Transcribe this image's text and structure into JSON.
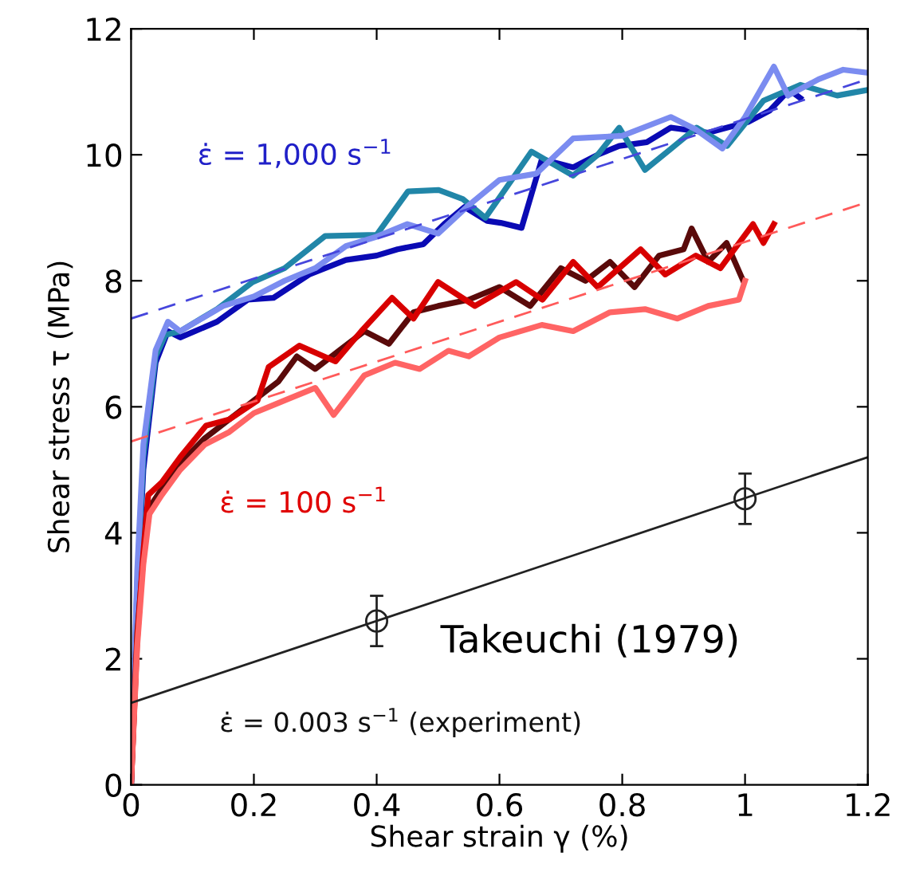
{
  "chart_data": {
    "type": "line",
    "xlabel": "Shear strain γ (%)",
    "ylabel": "Shear stress τ (MPa)",
    "xlim": [
      0,
      1.2
    ],
    "ylim": [
      0,
      12
    ],
    "xticks": [
      0,
      0.2,
      0.4,
      0.6,
      0.8,
      1,
      1.2
    ],
    "yticks": [
      0,
      2,
      4,
      6,
      8,
      10,
      12
    ],
    "grid": false,
    "legend": false,
    "line_style": "solid",
    "series": [
      {
        "color": "#0a0ab4",
        "x": [
          0,
          0.01,
          0.02,
          0.04,
          0.06,
          0.08,
          0.14,
          0.19,
          0.232,
          0.29,
          0.35,
          0.4,
          0.434,
          0.476,
          0.51,
          0.543,
          0.58,
          0.602,
          0.636,
          0.669,
          0.72,
          0.76,
          0.795,
          0.84,
          0.879,
          0.94,
          1.005,
          1.04,
          1.072,
          1.09
        ],
        "values": [
          0,
          3.0,
          5.0,
          6.7,
          7.2,
          7.1,
          7.35,
          7.7,
          7.73,
          8.1,
          8.33,
          8.4,
          8.5,
          8.58,
          8.9,
          9.17,
          8.95,
          8.92,
          8.84,
          9.93,
          9.8,
          10.0,
          10.14,
          10.2,
          10.43,
          10.35,
          10.52,
          10.7,
          11.03,
          10.9
        ]
      },
      {
        "color": "#2186a8",
        "x": [
          0,
          0.01,
          0.02,
          0.04,
          0.056,
          0.08,
          0.14,
          0.198,
          0.25,
          0.316,
          0.4,
          0.451,
          0.501,
          0.54,
          0.577,
          0.62,
          0.652,
          0.72,
          0.76,
          0.795,
          0.837,
          0.88,
          0.921,
          0.971,
          1.03,
          1.09,
          1.15,
          1.2
        ],
        "values": [
          0,
          3.2,
          5.2,
          6.8,
          7.14,
          7.2,
          7.55,
          7.98,
          8.2,
          8.71,
          8.73,
          9.42,
          9.44,
          9.3,
          9.0,
          9.6,
          10.05,
          9.67,
          10.0,
          10.43,
          9.76,
          10.1,
          10.43,
          10.14,
          10.86,
          11.11,
          10.94,
          11.03
        ]
      },
      {
        "color": "#7b8cf0",
        "x": [
          0,
          0.01,
          0.02,
          0.04,
          0.06,
          0.08,
          0.15,
          0.2,
          0.25,
          0.3,
          0.35,
          0.4,
          0.45,
          0.5,
          0.55,
          0.6,
          0.66,
          0.72,
          0.8,
          0.879,
          0.92,
          0.963,
          1.0,
          1.047,
          1.07,
          1.12,
          1.16,
          1.2
        ],
        "values": [
          0,
          3.4,
          5.4,
          6.9,
          7.35,
          7.2,
          7.6,
          7.75,
          8.0,
          8.2,
          8.55,
          8.7,
          8.9,
          8.75,
          9.2,
          9.6,
          9.7,
          10.26,
          10.3,
          10.6,
          10.4,
          10.1,
          10.6,
          11.4,
          10.94,
          11.2,
          11.35,
          11.3
        ]
      },
      {
        "color": "#5a0a0a",
        "x": [
          0,
          0.01,
          0.02,
          0.03,
          0.05,
          0.08,
          0.12,
          0.16,
          0.2,
          0.24,
          0.27,
          0.3,
          0.34,
          0.38,
          0.42,
          0.46,
          0.5,
          0.55,
          0.6,
          0.65,
          0.7,
          0.74,
          0.78,
          0.82,
          0.86,
          0.9,
          0.913,
          0.94,
          0.97,
          0.997
        ],
        "values": [
          0,
          2.4,
          3.6,
          4.4,
          4.7,
          5.1,
          5.5,
          5.8,
          6.1,
          6.4,
          6.8,
          6.6,
          6.9,
          7.2,
          7.0,
          7.5,
          7.6,
          7.7,
          7.9,
          7.6,
          8.2,
          8.0,
          8.3,
          7.9,
          8.4,
          8.5,
          8.83,
          8.3,
          8.6,
          8.0
        ]
      },
      {
        "color": "#d80000",
        "x": [
          0,
          0.01,
          0.02,
          0.028,
          0.05,
          0.08,
          0.122,
          0.16,
          0.206,
          0.224,
          0.274,
          0.333,
          0.375,
          0.425,
          0.46,
          0.5,
          0.56,
          0.627,
          0.67,
          0.72,
          0.76,
          0.83,
          0.87,
          0.92,
          0.96,
          1.013,
          1.03,
          1.047
        ],
        "values": [
          0,
          2.3,
          3.7,
          4.6,
          4.8,
          5.2,
          5.7,
          5.8,
          6.1,
          6.63,
          6.97,
          6.72,
          7.2,
          7.73,
          7.4,
          7.98,
          7.6,
          7.98,
          7.7,
          8.3,
          7.9,
          8.5,
          8.1,
          8.4,
          8.2,
          8.9,
          8.6,
          8.9
        ]
      },
      {
        "color": "#ff6464",
        "x": [
          0,
          0.01,
          0.02,
          0.03,
          0.05,
          0.08,
          0.12,
          0.16,
          0.2,
          0.25,
          0.3,
          0.33,
          0.38,
          0.43,
          0.47,
          0.517,
          0.55,
          0.6,
          0.669,
          0.72,
          0.78,
          0.837,
          0.89,
          0.94,
          0.99,
          1.0
        ],
        "values": [
          0,
          2.2,
          3.5,
          4.3,
          4.6,
          5.0,
          5.4,
          5.6,
          5.9,
          6.1,
          6.3,
          5.87,
          6.5,
          6.7,
          6.6,
          6.89,
          6.8,
          7.1,
          7.3,
          7.2,
          7.5,
          7.55,
          7.4,
          7.6,
          7.7,
          8.0
        ]
      },
      {
        "color": "#4646dc",
        "line_style": "dashed",
        "x": [
          0,
          1.2
        ],
        "values": [
          7.4,
          11.2
        ]
      },
      {
        "color": "#ff5a5a",
        "line_style": "dashed",
        "x": [
          0,
          1.2
        ],
        "values": [
          5.45,
          9.25
        ]
      },
      {
        "color": "#222222",
        "x": [
          0,
          1.2
        ],
        "values": [
          1.3,
          5.2
        ]
      },
      {
        "type": "scatter",
        "marker": "circle",
        "color": "#222222",
        "x": [
          0.4,
          1.0
        ],
        "values": [
          2.6,
          4.54
        ],
        "errors": [
          0.4,
          0.4
        ]
      }
    ],
    "annotations": [
      "ε̇ = 1,000 s$^{−1}$",
      "ε̇ = 100 s$^{−1}$",
      "ε̇ = 0.003 s$^{−1}$ (experiment)",
      "Takeuchi (1979)"
    ]
  }
}
